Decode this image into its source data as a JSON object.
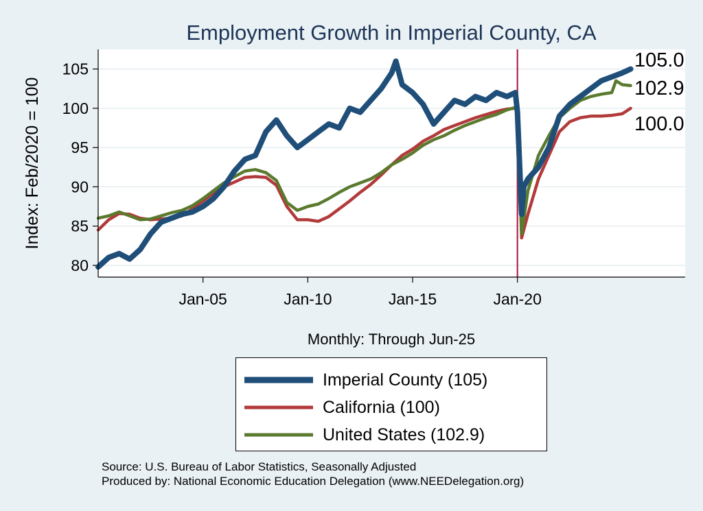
{
  "chart_data": {
    "type": "line",
    "title": "Employment Growth in Imperial  County, CA",
    "xlabel": "Monthly: Through Jun-25",
    "ylabel": "Index: Feb/2020 = 100",
    "ylim": [
      78.5,
      107.5
    ],
    "xlim": [
      2000.0,
      2028.0
    ],
    "yticks": [
      80,
      85,
      90,
      95,
      100,
      105
    ],
    "ytick_labels": [
      "80",
      "85",
      "90",
      "95",
      "100",
      "105"
    ],
    "xticks": [
      2005.0,
      2010.0,
      2015.0,
      2020.0
    ],
    "xtick_labels": [
      "Jan-05",
      "Jan-10",
      "Jan-15",
      "Jan-20"
    ],
    "grid": true,
    "reference_line_x": 2020.0,
    "series": [
      {
        "name": "Imperial  County",
        "color": "#1f4e79",
        "legend_label": "Imperial  County (105)",
        "end_label": "105.0",
        "x": [
          2000.0,
          2000.5,
          2001.0,
          2001.5,
          2002.0,
          2002.5,
          2003.0,
          2003.5,
          2004.0,
          2004.5,
          2005.0,
          2005.5,
          2006.0,
          2006.5,
          2007.0,
          2007.5,
          2008.0,
          2008.5,
          2009.0,
          2009.5,
          2010.0,
          2010.5,
          2011.0,
          2011.5,
          2012.0,
          2012.5,
          2013.0,
          2013.5,
          2014.0,
          2014.2,
          2014.5,
          2015.0,
          2015.5,
          2016.0,
          2016.5,
          2017.0,
          2017.5,
          2018.0,
          2018.5,
          2019.0,
          2019.5,
          2019.9,
          2020.0,
          2020.2,
          2020.3,
          2020.5,
          2021.0,
          2021.5,
          2022.0,
          2022.5,
          2023.0,
          2023.5,
          2024.0,
          2024.5,
          2025.0,
          2025.4
        ],
        "values": [
          79.8,
          81.0,
          81.5,
          80.8,
          82.0,
          84.0,
          85.5,
          86.0,
          86.5,
          86.8,
          87.5,
          88.5,
          90.0,
          92.0,
          93.5,
          94.0,
          97.0,
          98.5,
          96.5,
          95.0,
          96.0,
          97.0,
          98.0,
          97.5,
          100.0,
          99.5,
          101.0,
          102.5,
          104.5,
          106.0,
          103.0,
          102.0,
          100.5,
          98.0,
          99.5,
          101.0,
          100.5,
          101.5,
          101.0,
          102.0,
          101.5,
          102.0,
          99.5,
          86.5,
          90.0,
          91.0,
          92.5,
          95.0,
          99.0,
          100.5,
          101.5,
          102.5,
          103.5,
          104.0,
          104.5,
          105.0
        ]
      },
      {
        "name": "California",
        "color": "#b23a3a",
        "legend_label": "California (100)",
        "end_label": "100.0",
        "x": [
          2000.0,
          2000.5,
          2001.0,
          2001.5,
          2002.0,
          2002.5,
          2003.0,
          2003.5,
          2004.0,
          2004.5,
          2005.0,
          2005.5,
          2006.0,
          2006.5,
          2007.0,
          2007.5,
          2008.0,
          2008.5,
          2009.0,
          2009.5,
          2010.0,
          2010.5,
          2011.0,
          2011.5,
          2012.0,
          2012.5,
          2013.0,
          2013.5,
          2014.0,
          2014.5,
          2015.0,
          2015.5,
          2016.0,
          2016.5,
          2017.0,
          2017.5,
          2018.0,
          2018.5,
          2019.0,
          2019.5,
          2019.9,
          2020.0,
          2020.2,
          2020.5,
          2021.0,
          2021.5,
          2022.0,
          2022.5,
          2023.0,
          2023.5,
          2024.0,
          2024.5,
          2025.0,
          2025.4
        ],
        "values": [
          84.5,
          85.8,
          86.6,
          86.5,
          86.0,
          85.8,
          85.9,
          86.0,
          86.3,
          87.2,
          88.2,
          89.2,
          90.0,
          90.6,
          91.2,
          91.3,
          91.2,
          90.2,
          87.5,
          85.8,
          85.8,
          85.6,
          86.2,
          87.2,
          88.2,
          89.3,
          90.3,
          91.5,
          92.8,
          94.0,
          94.8,
          95.8,
          96.5,
          97.3,
          97.8,
          98.3,
          98.8,
          99.2,
          99.6,
          99.9,
          100.0,
          99.7,
          83.5,
          86.5,
          91.0,
          94.0,
          97.0,
          98.3,
          98.8,
          99.0,
          99.0,
          99.1,
          99.3,
          100.0
        ]
      },
      {
        "name": "United States",
        "color": "#5a7a2e",
        "legend_label": "United States (102.9)",
        "end_label": "102.9",
        "x": [
          2000.0,
          2000.5,
          2001.0,
          2001.5,
          2002.0,
          2002.5,
          2003.0,
          2003.5,
          2004.0,
          2004.5,
          2005.0,
          2005.5,
          2006.0,
          2006.5,
          2007.0,
          2007.5,
          2008.0,
          2008.5,
          2009.0,
          2009.5,
          2010.0,
          2010.5,
          2011.0,
          2011.5,
          2012.0,
          2012.5,
          2013.0,
          2013.5,
          2014.0,
          2014.5,
          2015.0,
          2015.5,
          2016.0,
          2016.5,
          2017.0,
          2017.5,
          2018.0,
          2018.5,
          2019.0,
          2019.5,
          2019.9,
          2020.0,
          2020.2,
          2020.5,
          2021.0,
          2021.5,
          2022.0,
          2022.5,
          2023.0,
          2023.5,
          2024.0,
          2024.5,
          2024.7,
          2025.0,
          2025.4
        ],
        "values": [
          86.0,
          86.3,
          86.8,
          86.3,
          85.8,
          85.9,
          86.3,
          86.7,
          87.0,
          87.6,
          88.5,
          89.5,
          90.5,
          91.3,
          92.0,
          92.2,
          91.8,
          90.8,
          88.0,
          87.0,
          87.5,
          87.8,
          88.5,
          89.3,
          90.0,
          90.5,
          91.0,
          91.8,
          92.8,
          93.5,
          94.3,
          95.3,
          96.0,
          96.5,
          97.2,
          97.8,
          98.3,
          98.8,
          99.2,
          99.8,
          100.1,
          99.5,
          84.0,
          89.5,
          94.0,
          96.5,
          98.8,
          100.0,
          101.0,
          101.5,
          101.8,
          102.0,
          103.5,
          103.0,
          102.9
        ]
      }
    ],
    "source_text": "Source: U.S. Bureau of Labor Statistics, Seasonally Adjusted",
    "producer_text": "Produced by: National Economic Education Delegation (www.NEEDelegation.org)"
  }
}
